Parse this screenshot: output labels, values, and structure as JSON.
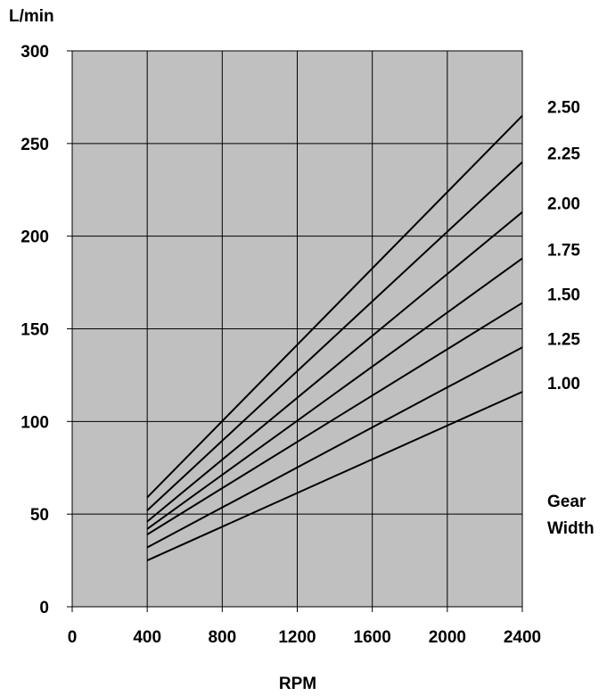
{
  "chart_data": {
    "type": "line",
    "ylabel": "L/min",
    "xlabel": "RPM",
    "xlim": [
      0,
      2400
    ],
    "ylim": [
      0,
      300
    ],
    "x_ticks": [
      "0",
      "400",
      "800",
      "1200",
      "1600",
      "2000",
      "2400"
    ],
    "y_ticks": [
      "0",
      "50",
      "100",
      "150",
      "200",
      "250",
      "300"
    ],
    "grid": true,
    "plot_background": "#c0c0c0",
    "line_color": "#000000",
    "legend_title_lines": [
      "Gear",
      "Width"
    ],
    "series": [
      {
        "name": "1.00",
        "x": [
          400,
          2400
        ],
        "y": [
          25,
          116
        ]
      },
      {
        "name": "1.25",
        "x": [
          400,
          2400
        ],
        "y": [
          32,
          140
        ]
      },
      {
        "name": "1.50",
        "x": [
          400,
          2400
        ],
        "y": [
          39,
          164
        ]
      },
      {
        "name": "1.75",
        "x": [
          400,
          2400
        ],
        "y": [
          42,
          188
        ]
      },
      {
        "name": "2.00",
        "x": [
          400,
          2400
        ],
        "y": [
          46,
          213
        ]
      },
      {
        "name": "2.25",
        "x": [
          400,
          2400
        ],
        "y": [
          52,
          240
        ]
      },
      {
        "name": "2.50",
        "x": [
          400,
          2400
        ],
        "y": [
          59,
          265
        ]
      }
    ]
  }
}
